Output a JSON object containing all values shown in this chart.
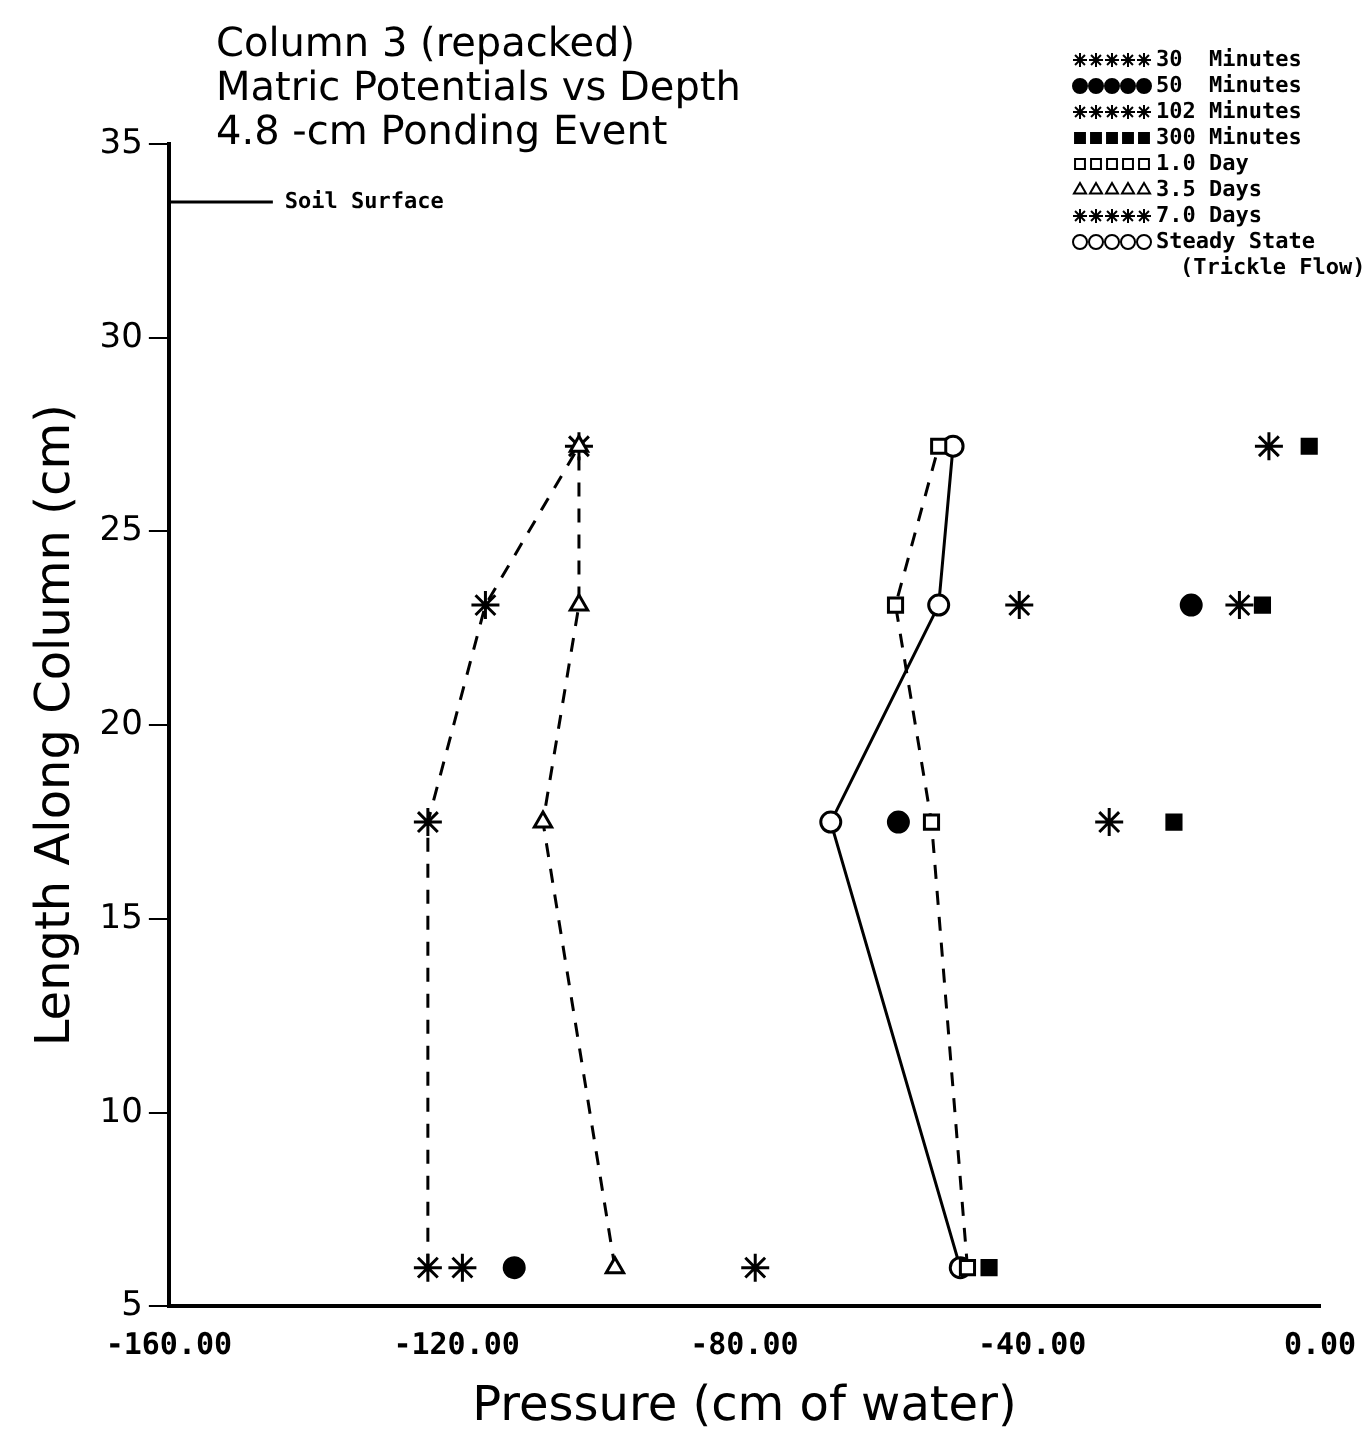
{
  "chart_data": {
    "type": "line",
    "title": "Column 3 (repacked)\nMatric Potentials vs Depth\n4.8 -cm Ponding Event",
    "xlabel": "Pressure (cm of water)",
    "ylabel": "Length Along Column (cm)",
    "xlim": [
      -160,
      0
    ],
    "xticks": [
      {
        "value": -160,
        "label": "-160.00"
      },
      {
        "value": -120,
        "label": "-120.00"
      },
      {
        "value": -80,
        "label": "-80.00"
      },
      {
        "value": -40,
        "label": "-40.00"
      },
      {
        "value": 0,
        "label": "0.00"
      }
    ],
    "ylim": [
      5,
      35
    ],
    "yticks": [
      5,
      10,
      15,
      20,
      25,
      30,
      35
    ],
    "grid": false,
    "legend": "top right",
    "ref_lines": [
      {
        "axis": "y",
        "value": 33.5,
        "label": "Soil Surface"
      }
    ],
    "series": [
      {
        "name": "30  Minutes",
        "type": "scatter",
        "marker": "cross",
        "color": "#000000",
        "x": [
          -119.2,
          -41.8,
          -7.1
        ],
        "values": [
          6,
          23.1,
          27.2
        ]
      },
      {
        "name": "50  Minutes",
        "type": "scatter",
        "marker": "circle",
        "color": "#000000",
        "x": [
          -112,
          -58.6,
          -17.9
        ],
        "values": [
          6,
          17.5,
          23.1
        ]
      },
      {
        "name": "102 Minutes",
        "type": "scatter",
        "marker": "cross",
        "color": "#000000",
        "x": [
          -78.5,
          -29.3,
          -11.2
        ],
        "values": [
          6,
          17.5,
          23.1
        ]
      },
      {
        "name": "300 Minutes",
        "type": "scatter",
        "marker": "square",
        "color": "#000000",
        "x": [
          -46,
          -20.3,
          -8,
          -1.5
        ],
        "values": [
          6,
          17.5,
          23.1,
          27.2
        ]
      },
      {
        "name": "1.0 Day",
        "marker": "square",
        "line_style": "dashed",
        "color": "#000000",
        "x": [
          -49,
          -54,
          -59,
          -53
        ],
        "values": [
          6,
          17.5,
          23.1,
          27.2
        ]
      },
      {
        "name": "3.5 Days",
        "marker": "triangle",
        "line_style": "dashed",
        "color": "#000000",
        "x": [
          -98,
          -108,
          -103,
          -103
        ],
        "values": [
          6,
          17.5,
          23.1,
          27.2
        ]
      },
      {
        "name": "7.0 Days",
        "marker": "cross",
        "line_style": "dashed",
        "color": "#000000",
        "x": [
          -124,
          -124,
          -116,
          -103
        ],
        "values": [
          6,
          17.5,
          23.1,
          27.2
        ]
      },
      {
        "name": "Steady State (Trickle Flow)",
        "marker": "circle",
        "line_style": "solid",
        "color": "#000000",
        "x": [
          -50,
          -68,
          -53,
          -51
        ],
        "values": [
          6,
          17.5,
          23.1,
          27.2
        ]
      }
    ]
  }
}
